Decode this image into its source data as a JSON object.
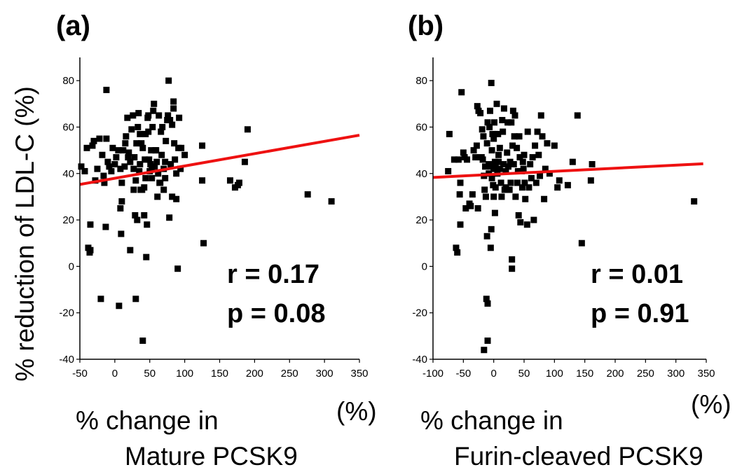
{
  "chart_data": [
    {
      "type": "scatter",
      "panel_label": "(a)",
      "ylabel": "% reduction of LDL-C (%)",
      "xlabel_lines": [
        "% change in",
        "Mature PCSK9"
      ],
      "x_unit": "(%)",
      "xlim": [
        -50,
        350
      ],
      "ylim": [
        -40,
        90
      ],
      "xticks": [
        -50,
        0,
        50,
        100,
        150,
        200,
        250,
        300,
        350
      ],
      "yticks": [
        -40,
        -20,
        0,
        20,
        40,
        60,
        80
      ],
      "grid": false,
      "marker_color": "#000000",
      "fit_line": {
        "color": "#ee1111",
        "points": [
          [
            -50,
            35.3
          ],
          [
            350,
            56.5
          ]
        ]
      },
      "stats": [
        "r = 0.17",
        "p = 0.08"
      ],
      "points": [
        [
          -48,
          43
        ],
        [
          -43,
          41
        ],
        [
          -40,
          51
        ],
        [
          -38,
          8
        ],
        [
          -36,
          6
        ],
        [
          -35,
          7
        ],
        [
          -35,
          18
        ],
        [
          -32,
          52
        ],
        [
          -30,
          54
        ],
        [
          -28,
          37
        ],
        [
          -25,
          42
        ],
        [
          -22,
          55
        ],
        [
          -20,
          -14
        ],
        [
          -18,
          48
        ],
        [
          -16,
          39
        ],
        [
          -15,
          36
        ],
        [
          -13,
          17
        ],
        [
          -12,
          76
        ],
        [
          -12,
          55
        ],
        [
          -10,
          45
        ],
        [
          -8,
          43
        ],
        [
          -5,
          41
        ],
        [
          -3,
          51
        ],
        [
          0,
          44
        ],
        [
          2,
          47
        ],
        [
          5,
          50
        ],
        [
          6,
          -17
        ],
        [
          8,
          25
        ],
        [
          8,
          42
        ],
        [
          9,
          14
        ],
        [
          10,
          28
        ],
        [
          10,
          36
        ],
        [
          12,
          50
        ],
        [
          14,
          43
        ],
        [
          15,
          53
        ],
        [
          16,
          56
        ],
        [
          18,
          64
        ],
        [
          19,
          47
        ],
        [
          20,
          49
        ],
        [
          22,
          45
        ],
        [
          22,
          7
        ],
        [
          24,
          59
        ],
        [
          26,
          65
        ],
        [
          27,
          42
        ],
        [
          27,
          33
        ],
        [
          28,
          47
        ],
        [
          29,
          22
        ],
        [
          30,
          -14
        ],
        [
          30,
          37
        ],
        [
          31,
          53
        ],
        [
          32,
          20
        ],
        [
          33,
          60
        ],
        [
          34,
          66
        ],
        [
          35,
          41
        ],
        [
          36,
          44
        ],
        [
          36,
          57
        ],
        [
          37,
          33
        ],
        [
          38,
          53
        ],
        [
          39,
          33
        ],
        [
          40,
          51
        ],
        [
          40,
          -32
        ],
        [
          42,
          22
        ],
        [
          42,
          34
        ],
        [
          43,
          46
        ],
        [
          44,
          38
        ],
        [
          44,
          57
        ],
        [
          45,
          4
        ],
        [
          46,
          18
        ],
        [
          47,
          64
        ],
        [
          48,
          65
        ],
        [
          48,
          58
        ],
        [
          49,
          46
        ],
        [
          50,
          41
        ],
        [
          51,
          44
        ],
        [
          52,
          50
        ],
        [
          53,
          42
        ],
        [
          53,
          38
        ],
        [
          54,
          60
        ],
        [
          55,
          67
        ],
        [
          56,
          70
        ],
        [
          57,
          43
        ],
        [
          58,
          50
        ],
        [
          59,
          50
        ],
        [
          60,
          45
        ],
        [
          61,
          30
        ],
        [
          62,
          40
        ],
        [
          63,
          65
        ],
        [
          64,
          36
        ],
        [
          65,
          36
        ],
        [
          66,
          58
        ],
        [
          67,
          48
        ],
        [
          68,
          60
        ],
        [
          70,
          33
        ],
        [
          70,
          42
        ],
        [
          72,
          38
        ],
        [
          72,
          45
        ],
        [
          73,
          54
        ],
        [
          75,
          63
        ],
        [
          76,
          65
        ],
        [
          77,
          80
        ],
        [
          78,
          21
        ],
        [
          79,
          63
        ],
        [
          80,
          44
        ],
        [
          82,
          30
        ],
        [
          82,
          61
        ],
        [
          84,
          68
        ],
        [
          84,
          71
        ],
        [
          85,
          53
        ],
        [
          86,
          46
        ],
        [
          88,
          29
        ],
        [
          88,
          40
        ],
        [
          90,
          -1
        ],
        [
          91,
          51
        ],
        [
          92,
          64
        ],
        [
          94,
          42
        ],
        [
          95,
          51
        ],
        [
          100,
          48
        ],
        [
          125,
          52
        ],
        [
          125,
          37
        ],
        [
          127,
          10
        ],
        [
          165,
          37
        ],
        [
          172,
          34
        ],
        [
          176,
          35
        ],
        [
          178,
          36
        ],
        [
          186,
          45
        ],
        [
          190,
          59
        ],
        [
          276,
          31
        ],
        [
          310,
          28
        ]
      ]
    },
    {
      "type": "scatter",
      "panel_label": "(b)",
      "xlabel_lines": [
        "% change in",
        "Furin-cleaved PCSK9"
      ],
      "x_unit": "(%)",
      "xlim": [
        -100,
        350
      ],
      "ylim": [
        -40,
        90
      ],
      "xticks": [
        -100,
        -50,
        0,
        50,
        100,
        150,
        200,
        250,
        300,
        350
      ],
      "yticks": [
        -40,
        -20,
        0,
        20,
        40,
        60,
        80
      ],
      "grid": false,
      "marker_color": "#000000",
      "fit_line": {
        "color": "#ee1111",
        "points": [
          [
            -100,
            38.3
          ],
          [
            345,
            44.2
          ]
        ]
      },
      "stats": [
        "r = 0.01",
        "p = 0.91"
      ],
      "points": [
        [
          -75,
          41
        ],
        [
          -73,
          57
        ],
        [
          -65,
          46
        ],
        [
          -62,
          8
        ],
        [
          -60,
          6
        ],
        [
          -58,
          46
        ],
        [
          -56,
          31
        ],
        [
          -55,
          18
        ],
        [
          -55,
          36
        ],
        [
          -53,
          75
        ],
        [
          -50,
          49
        ],
        [
          -48,
          47
        ],
        [
          -46,
          25
        ],
        [
          -44,
          46
        ],
        [
          -40,
          27
        ],
        [
          -38,
          26
        ],
        [
          -35,
          31
        ],
        [
          -33,
          50
        ],
        [
          -30,
          47
        ],
        [
          -28,
          52
        ],
        [
          -27,
          69
        ],
        [
          -26,
          25
        ],
        [
          -25,
          67
        ],
        [
          -22,
          66
        ],
        [
          -20,
          47
        ],
        [
          -19,
          59
        ],
        [
          -18,
          46
        ],
        [
          -17,
          56
        ],
        [
          -16,
          39
        ],
        [
          -16,
          -36
        ],
        [
          -15,
          33
        ],
        [
          -14,
          43
        ],
        [
          -13,
          30
        ],
        [
          -12,
          -14
        ],
        [
          -11,
          53
        ],
        [
          -11,
          13
        ],
        [
          -10,
          62
        ],
        [
          -10,
          -32
        ],
        [
          -10,
          -16
        ],
        [
          -8,
          44
        ],
        [
          -8,
          40
        ],
        [
          -7,
          60
        ],
        [
          -6,
          67
        ],
        [
          -5,
          43
        ],
        [
          -5,
          8
        ],
        [
          -4,
          79
        ],
        [
          -4,
          16
        ],
        [
          -3,
          50
        ],
        [
          -3,
          38
        ],
        [
          -2,
          57
        ],
        [
          -1,
          35
        ],
        [
          0,
          55
        ],
        [
          0,
          42
        ],
        [
          0,
          30
        ],
        [
          1,
          62
        ],
        [
          2,
          45
        ],
        [
          2,
          23
        ],
        [
          3,
          44
        ],
        [
          3,
          34
        ],
        [
          5,
          70
        ],
        [
          6,
          40
        ],
        [
          7,
          57
        ],
        [
          8,
          48
        ],
        [
          8,
          45
        ],
        [
          10,
          51
        ],
        [
          10,
          42
        ],
        [
          12,
          36
        ],
        [
          13,
          30
        ],
        [
          14,
          63
        ],
        [
          15,
          58
        ],
        [
          16,
          44
        ],
        [
          17,
          68
        ],
        [
          18,
          33
        ],
        [
          20,
          41
        ],
        [
          20,
          34
        ],
        [
          22,
          49
        ],
        [
          23,
          62
        ],
        [
          24,
          43
        ],
        [
          26,
          33
        ],
        [
          27,
          45
        ],
        [
          28,
          36
        ],
        [
          29,
          62
        ],
        [
          30,
          3
        ],
        [
          30,
          -1
        ],
        [
          31,
          52
        ],
        [
          32,
          67
        ],
        [
          33,
          44
        ],
        [
          34,
          56
        ],
        [
          35,
          65
        ],
        [
          36,
          30
        ],
        [
          38,
          51
        ],
        [
          39,
          36
        ],
        [
          40,
          41
        ],
        [
          41,
          22
        ],
        [
          42,
          56
        ],
        [
          43,
          47
        ],
        [
          44,
          19
        ],
        [
          46,
          41
        ],
        [
          47,
          34
        ],
        [
          48,
          45
        ],
        [
          49,
          42
        ],
        [
          50,
          48
        ],
        [
          51,
          36
        ],
        [
          52,
          29
        ],
        [
          55,
          18
        ],
        [
          56,
          58
        ],
        [
          58,
          34
        ],
        [
          60,
          44
        ],
        [
          62,
          38
        ],
        [
          64,
          47
        ],
        [
          66,
          20
        ],
        [
          68,
          52
        ],
        [
          70,
          36
        ],
        [
          72,
          58
        ],
        [
          74,
          48
        ],
        [
          76,
          39
        ],
        [
          78,
          65
        ],
        [
          80,
          56
        ],
        [
          83,
          29
        ],
        [
          85,
          42
        ],
        [
          88,
          53
        ],
        [
          92,
          40
        ],
        [
          100,
          52
        ],
        [
          105,
          34
        ],
        [
          108,
          37
        ],
        [
          122,
          35
        ],
        [
          130,
          45
        ],
        [
          138,
          65
        ],
        [
          145,
          10
        ],
        [
          160,
          37
        ],
        [
          162,
          44
        ],
        [
          330,
          28
        ]
      ]
    }
  ]
}
